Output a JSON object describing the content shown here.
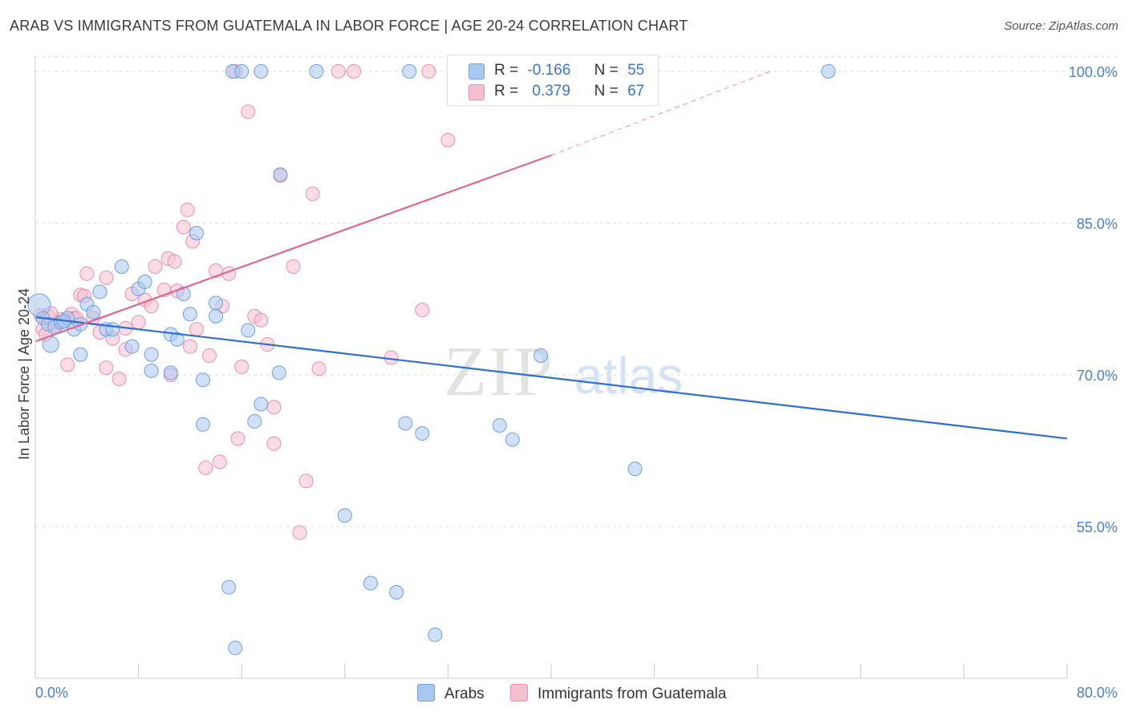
{
  "header": {
    "title": "ARAB VS IMMIGRANTS FROM GUATEMALA IN LABOR FORCE | AGE 20-24 CORRELATION CHART",
    "source": "Source: ZipAtlas.com"
  },
  "legend": {
    "arabs": {
      "r_label": "R =",
      "r_value": "-0.166",
      "n_label": "N =",
      "n_value": "55"
    },
    "guatemala": {
      "r_label": "R =",
      "r_value": "0.379",
      "n_label": "N =",
      "n_value": "67"
    }
  },
  "bottom_legend": {
    "arabs": "Arabs",
    "guatemala": "Immigrants from Guatemala"
  },
  "colors": {
    "arabs_fill": "#a9c8f0",
    "arabs_stroke": "#6f9fe0",
    "arabs_line": "#2f6fd0",
    "guatemala_fill": "#f6bfd0",
    "guatemala_stroke": "#eb8fae",
    "guatemala_line": "#e0678f",
    "grid": "#dcdcdc",
    "tick_text": "#4a7fd0"
  },
  "chart_data": {
    "type": "scatter",
    "title": "ARAB VS IMMIGRANTS FROM GUATEMALA IN LABOR FORCE | AGE 20-24 CORRELATION CHART",
    "xlabel": "",
    "ylabel": "In Labor Force | Age 20-24",
    "xlim": [
      0,
      80
    ],
    "ylim": [
      40,
      101.5
    ],
    "x_tick_labels": [
      "0.0%",
      "80.0%"
    ],
    "y_ticks": [
      100,
      85,
      70,
      55
    ],
    "y_tick_labels": [
      "100.0%",
      "85.0%",
      "70.0%",
      "55.0%"
    ],
    "grid": true,
    "legend_position": "top-center",
    "series": [
      {
        "name": "Arabs",
        "r": -0.166,
        "n": 55,
        "trend": {
          "x": [
            0,
            80
          ],
          "y": [
            75.7,
            63.7
          ]
        },
        "points": [
          [
            0.3,
            76.9
          ],
          [
            0.6,
            75.6
          ],
          [
            1.0,
            75.0
          ],
          [
            1.2,
            73.0
          ],
          [
            1.5,
            74.7
          ],
          [
            2.0,
            75.2
          ],
          [
            2.5,
            75.6
          ],
          [
            3.0,
            74.5
          ],
          [
            3.5,
            75.0
          ],
          [
            4.0,
            77.0
          ],
          [
            4.5,
            76.2
          ],
          [
            5.5,
            74.5
          ],
          [
            6.0,
            74.5
          ],
          [
            5.0,
            78.2
          ],
          [
            6.7,
            80.7
          ],
          [
            7.5,
            72.8
          ],
          [
            8.0,
            78.5
          ],
          [
            8.5,
            79.2
          ],
          [
            9.0,
            72.0
          ],
          [
            9.0,
            70.4
          ],
          [
            10.5,
            70.2
          ],
          [
            10.5,
            74.0
          ],
          [
            11.0,
            73.5
          ],
          [
            11.5,
            78.0
          ],
          [
            12.0,
            76.0
          ],
          [
            12.5,
            84.0
          ],
          [
            13.0,
            69.5
          ],
          [
            13.0,
            65.1
          ],
          [
            14.0,
            77.1
          ],
          [
            14.0,
            75.8
          ],
          [
            15.3,
            100.0
          ],
          [
            16.0,
            100.0
          ],
          [
            16.5,
            74.4
          ],
          [
            17.0,
            65.4
          ],
          [
            17.5,
            67.1
          ],
          [
            17.5,
            100.0
          ],
          [
            18.9,
            70.2
          ],
          [
            19.0,
            89.8
          ],
          [
            21.8,
            100.0
          ],
          [
            24.0,
            56.1
          ],
          [
            26.0,
            49.4
          ],
          [
            28.0,
            48.5
          ],
          [
            28.7,
            65.2
          ],
          [
            29.0,
            100.0
          ],
          [
            30.0,
            64.2
          ],
          [
            31.0,
            44.3
          ],
          [
            36.0,
            65.0
          ],
          [
            37.0,
            63.6
          ],
          [
            39.2,
            71.9
          ],
          [
            46.5,
            60.7
          ],
          [
            61.5,
            100.0
          ],
          [
            15.0,
            49.0
          ],
          [
            15.5,
            43.0
          ],
          [
            3.5,
            72.0
          ],
          [
            2.2,
            75.3
          ]
        ]
      },
      {
        "name": "Immigrants from Guatemala",
        "r": 0.379,
        "n": 67,
        "trend": {
          "x": [
            0,
            40
          ],
          "y": [
            73.3,
            91.7
          ]
        },
        "trend_dashed": {
          "x": [
            40,
            57
          ],
          "y": [
            91.7,
            100.0
          ]
        },
        "points": [
          [
            0.4,
            75.9
          ],
          [
            0.6,
            74.5
          ],
          [
            0.8,
            74.0
          ],
          [
            1.0,
            75.8
          ],
          [
            1.5,
            74.9
          ],
          [
            1.8,
            75.2
          ],
          [
            2.0,
            75.5
          ],
          [
            2.2,
            75.0
          ],
          [
            2.5,
            71.0
          ],
          [
            2.8,
            76.0
          ],
          [
            3.0,
            75.6
          ],
          [
            3.5,
            77.9
          ],
          [
            3.8,
            77.8
          ],
          [
            4.0,
            80.0
          ],
          [
            4.5,
            75.6
          ],
          [
            5.0,
            74.2
          ],
          [
            5.5,
            79.6
          ],
          [
            5.5,
            70.7
          ],
          [
            6.0,
            73.6
          ],
          [
            6.5,
            69.6
          ],
          [
            7.0,
            72.5
          ],
          [
            7.0,
            74.6
          ],
          [
            7.5,
            78.0
          ],
          [
            8.0,
            75.2
          ],
          [
            8.5,
            77.4
          ],
          [
            9.0,
            76.8
          ],
          [
            9.3,
            80.7
          ],
          [
            10.0,
            78.4
          ],
          [
            10.3,
            81.5
          ],
          [
            10.5,
            70.0
          ],
          [
            10.8,
            81.2
          ],
          [
            11.0,
            78.3
          ],
          [
            11.5,
            84.6
          ],
          [
            11.8,
            86.3
          ],
          [
            12.0,
            72.8
          ],
          [
            12.2,
            83.2
          ],
          [
            12.5,
            74.5
          ],
          [
            13.5,
            71.9
          ],
          [
            14.0,
            80.3
          ],
          [
            14.5,
            76.8
          ],
          [
            15.0,
            80.0
          ],
          [
            15.5,
            100.0
          ],
          [
            16.0,
            70.8
          ],
          [
            16.5,
            96.0
          ],
          [
            17.0,
            75.8
          ],
          [
            17.5,
            75.4
          ],
          [
            18.0,
            73.0
          ],
          [
            18.5,
            66.8
          ],
          [
            18.5,
            63.2
          ],
          [
            19.0,
            89.7
          ],
          [
            20.0,
            80.7
          ],
          [
            20.5,
            54.4
          ],
          [
            21.0,
            59.5
          ],
          [
            21.5,
            87.9
          ],
          [
            22.0,
            70.6
          ],
          [
            23.5,
            100.0
          ],
          [
            24.7,
            100.0
          ],
          [
            27.6,
            71.7
          ],
          [
            30.0,
            76.4
          ],
          [
            30.5,
            100.0
          ],
          [
            32.0,
            93.2
          ],
          [
            37.5,
            100.0
          ],
          [
            14.3,
            61.4
          ],
          [
            15.7,
            63.7
          ],
          [
            13.2,
            60.8
          ],
          [
            3.2,
            75.6
          ],
          [
            1.2,
            76.1
          ]
        ]
      }
    ]
  }
}
